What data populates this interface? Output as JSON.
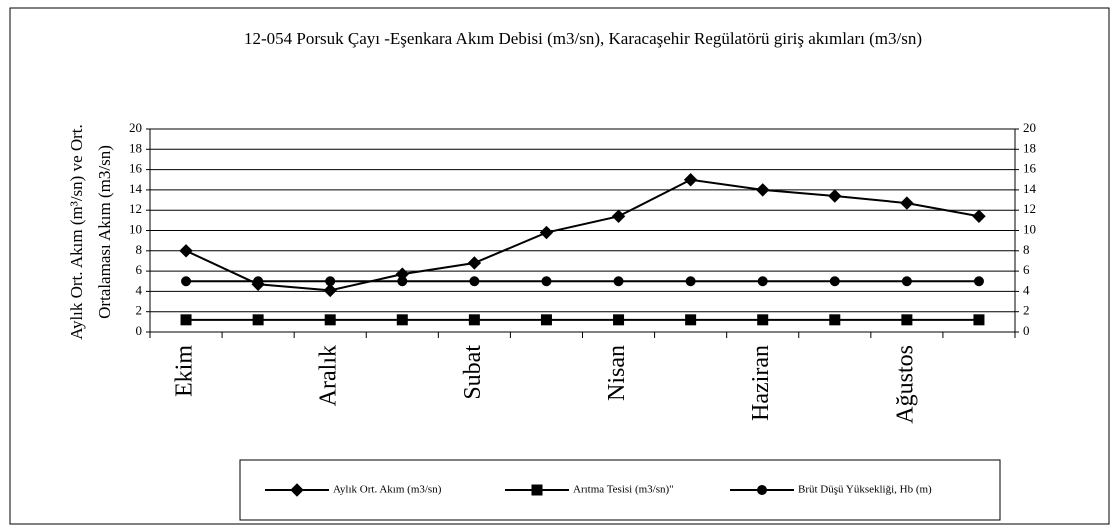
{
  "chart_data": {
    "type": "line",
    "title": "12-054 Porsuk Çayı -Eşenkara Akım Debisi (m3/sn), Karacaşehir Regülatörü giriş akımları (m3/sn)",
    "ylabel": [
      "Aylık Ort. Akım (m³/sn) ve Ort.",
      "Ortalaması Akım (m3/sn)"
    ],
    "categories": [
      "Ekim",
      null,
      "Aralık",
      null,
      "Subat",
      null,
      "Nisan",
      null,
      "Haziran",
      null,
      "Ağustos",
      null
    ],
    "series": [
      {
        "name": "Aylık Ort. Akım (m3/sn)",
        "color": "#000000",
        "marker": "diamond",
        "values": [
          8.0,
          4.7,
          4.1,
          5.7,
          6.8,
          9.8,
          11.4,
          15.0,
          14.0,
          13.4,
          12.7,
          11.4
        ]
      },
      {
        "name": "Arıtma Tesisi (m3/sn)\"",
        "color": "#000000",
        "marker": "square",
        "values": [
          1.2,
          1.2,
          1.2,
          1.2,
          1.2,
          1.2,
          1.2,
          1.2,
          1.2,
          1.2,
          1.2,
          1.2
        ]
      },
      {
        "name": "Brüt Düşü Yüksekliği, Hb (m)",
        "color": "#000000",
        "marker": "circle",
        "values": [
          5,
          5,
          5,
          5,
          5,
          5,
          5,
          5,
          5,
          5,
          5,
          5
        ]
      }
    ],
    "ylim": [
      0,
      20
    ],
    "yticks": [
      0,
      2,
      4,
      6,
      8,
      10,
      12,
      14,
      16,
      18,
      20
    ],
    "y2lim": [
      0,
      20
    ],
    "y2ticks": [
      0,
      2,
      4,
      6,
      8,
      10,
      12,
      14,
      16,
      18,
      20
    ],
    "grid": true,
    "legend": "bottom"
  }
}
